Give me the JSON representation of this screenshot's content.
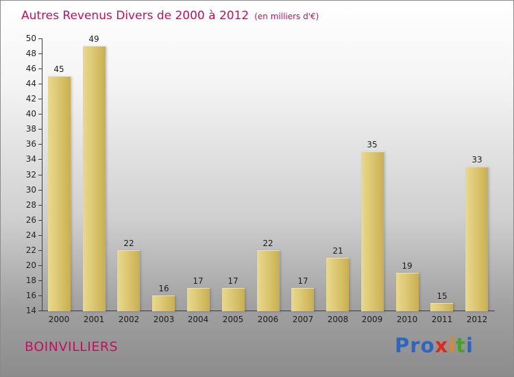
{
  "header": {
    "title": "Autres Revenus Divers de 2000 à 2012",
    "subtitle": "(en milliers d'€)"
  },
  "footer": {
    "company": "BOINVILLIERS",
    "logo": {
      "name": "Proxiti",
      "letters": [
        {
          "ch": "P",
          "color": "#2b66c4"
        },
        {
          "ch": "r",
          "color": "#2b66c4"
        },
        {
          "ch": "o",
          "color": "#2b66c4"
        },
        {
          "ch": "x",
          "color": "#dd2b1c"
        },
        {
          "ch": "i",
          "color": "#e8851c"
        },
        {
          "ch": "t",
          "color": "#46a327"
        },
        {
          "ch": "i",
          "color": "#2b66c4"
        }
      ]
    }
  },
  "colors": {
    "accent": "#c40f5f",
    "bar_light": "#e9d98f",
    "bar_dark": "#c9af52",
    "axis": "#3a3a3a"
  },
  "chart_data": {
    "type": "bar",
    "title": "Autres Revenus Divers de 2000 à 2012",
    "subtitle": "(en milliers d'€)",
    "categories": [
      "2000",
      "2001",
      "2002",
      "2003",
      "2004",
      "2005",
      "2006",
      "2007",
      "2008",
      "2009",
      "2010",
      "2011",
      "2012"
    ],
    "values": [
      45,
      49,
      22,
      16,
      17,
      17,
      22,
      17,
      21,
      35,
      19,
      15,
      33
    ],
    "xlabel": "",
    "ylabel": "",
    "ylim": [
      14,
      50
    ],
    "ytick_step": 2,
    "grid": false,
    "legend": "none",
    "value_labels": true
  }
}
